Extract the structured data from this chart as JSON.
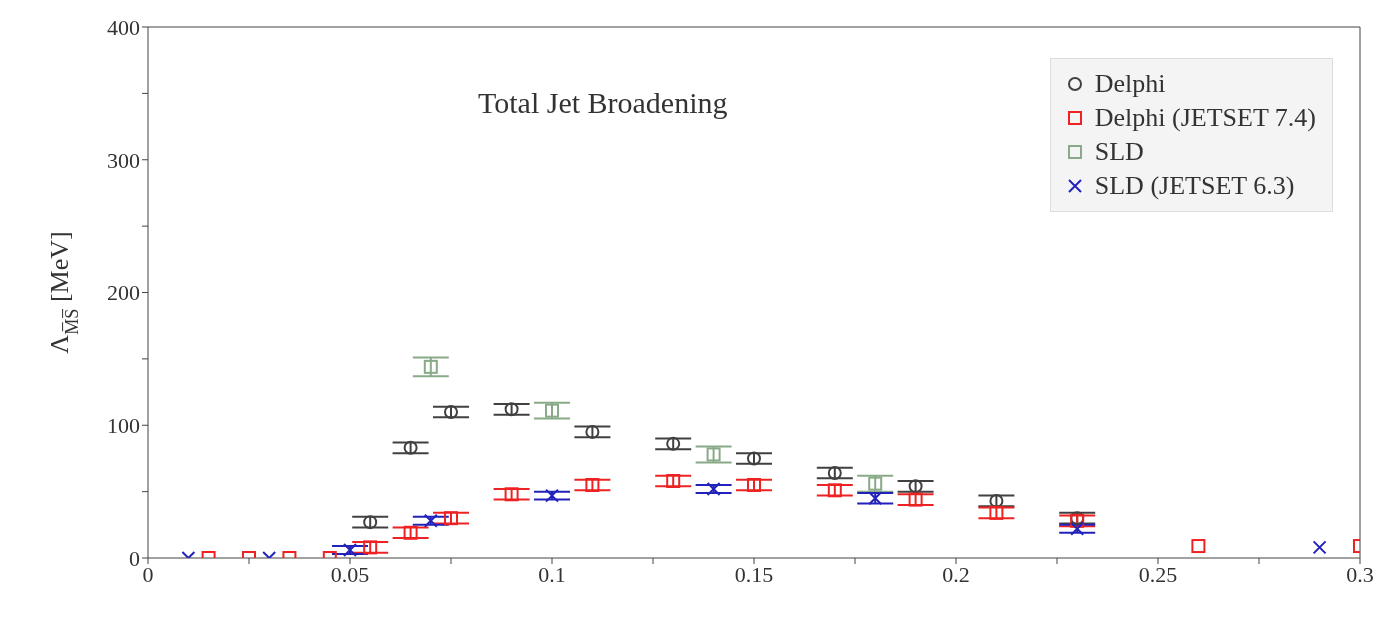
{
  "chart_data": {
    "type": "scatter",
    "title": "Total Jet Broadening",
    "ylabel": "Λ$_{M̅S̅}$ [MeV]",
    "xlim": [
      0,
      0.3
    ],
    "xticks": [
      0,
      {
        "value": 0.025,
        "label": null
      },
      0.05,
      {
        "value": 0.075,
        "label": null
      },
      0.1,
      {
        "value": 0.125,
        "label": null
      },
      0.15,
      {
        "value": 0.175,
        "label": null
      },
      0.2,
      {
        "value": 0.225,
        "label": null
      },
      0.25,
      {
        "value": 0.275,
        "label": null
      },
      0.3
    ],
    "ylim": [
      0,
      400
    ],
    "yticks": [
      0,
      {
        "value": 50,
        "label": null
      },
      100,
      {
        "value": 150,
        "label": null
      },
      200,
      {
        "value": 250,
        "label": null
      },
      300,
      {
        "value": 350,
        "label": null
      },
      400
    ],
    "grid": false,
    "legend": "top right",
    "series": [
      {
        "name": "Delphi",
        "color": "#404040",
        "marker": "circle",
        "x": [
          0.055,
          0.065,
          0.075,
          0.09,
          0.11,
          0.13,
          0.15,
          0.17,
          0.19,
          0.21,
          0.23
        ],
        "values": [
          27,
          83,
          110,
          112,
          95,
          86,
          75,
          64,
          54,
          43,
          30
        ],
        "errors": [
          4,
          4,
          4,
          4,
          4,
          4,
          4,
          4,
          4,
          4,
          4
        ]
      },
      {
        "name": "Delphi (JETSET 7.4)",
        "color": "#ee2222",
        "marker": "square",
        "x": [
          0.015,
          0.025,
          0.035,
          0.045,
          0.055,
          0.065,
          0.075,
          0.09,
          0.11,
          0.13,
          0.15,
          0.17,
          0.19,
          0.21,
          0.23,
          0.26,
          0.3
        ],
        "values": [
          0,
          0,
          0,
          0,
          8,
          19,
          30,
          48,
          55,
          58,
          55,
          51,
          44,
          34,
          28,
          9,
          9
        ],
        "errors": [
          null,
          null,
          null,
          null,
          4,
          4,
          4,
          4,
          4,
          4,
          4,
          4,
          4,
          4,
          4,
          null,
          null
        ]
      },
      {
        "name": "SLD",
        "color": "#88aa88",
        "marker": "square",
        "x": [
          0.07,
          0.1,
          0.14,
          0.18
        ],
        "values": [
          144,
          111,
          78,
          56
        ],
        "errors": [
          7,
          6,
          6,
          6
        ]
      },
      {
        "name": "SLD (JETSET 6.3)",
        "color": "#2222bb",
        "marker": "cross",
        "x": [
          0.01,
          0.03,
          0.05,
          0.07,
          0.1,
          0.14,
          0.18,
          0.23,
          0.29
        ],
        "values": [
          0,
          0,
          6,
          28,
          47,
          52,
          45,
          22,
          8
        ],
        "errors": [
          null,
          null,
          3,
          3,
          3,
          3,
          4,
          3,
          null
        ]
      }
    ]
  }
}
